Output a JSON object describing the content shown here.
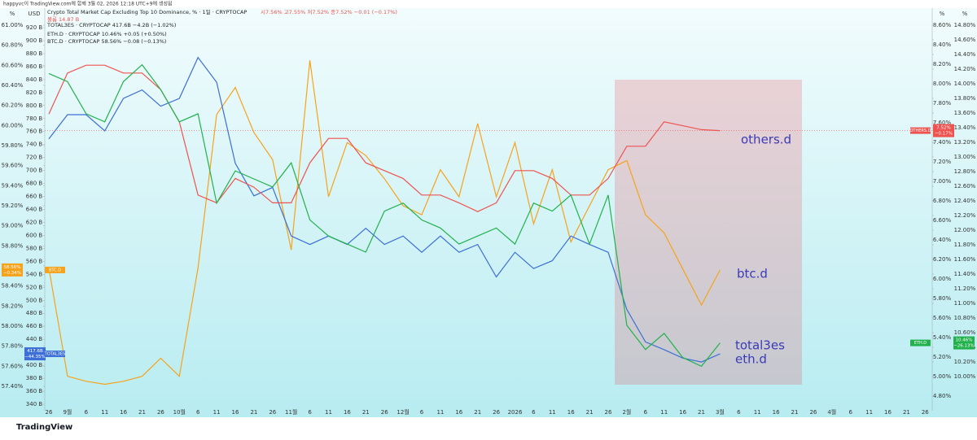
{
  "header": "happyvc이 TradingView.com에 함께 3월 02, 2026 12:18 UTC+9에 생성됨",
  "footer": "TradingView",
  "chart_data": {
    "type": "line",
    "title": "Crypto Total Market Cap Excluding Top 10 Dominance, % · 1일 · CRYPTOCAP",
    "title_values": "시7.56% 고7.55% 저7.52% 종7.52% −0.01 (−0.17%)",
    "volume_label": "볼륨 14.87 B",
    "annotations": [
      "others.d",
      "btc.d",
      "total3es",
      "eth.d"
    ],
    "categories": [
      "26",
      "9월",
      "6",
      "11",
      "16",
      "21",
      "26",
      "10월",
      "6",
      "11",
      "16",
      "21",
      "26",
      "11월",
      "6",
      "11",
      "16",
      "21",
      "26",
      "12월",
      "6",
      "11",
      "16",
      "21",
      "26",
      "2026",
      "6",
      "11",
      "16",
      "21",
      "26",
      "2월",
      "6",
      "11",
      "16",
      "21",
      "3월",
      "6",
      "11",
      "16",
      "21",
      "26",
      "4월",
      "6",
      "11",
      "16",
      "21",
      "26"
    ],
    "axes": [
      {
        "unit": "%",
        "lim": [
          57.4,
          61
        ],
        "ticks": [
          {
            "value": 57.4,
            "label": "57.40%"
          },
          {
            "value": 57.6,
            "label": "57.60%"
          },
          {
            "value": 57.8,
            "label": "57.80%"
          },
          {
            "value": 58,
            "label": "58.00%"
          },
          {
            "value": 58.2,
            "label": "58.20%"
          },
          {
            "value": 58.4,
            "label": "58.40%"
          },
          {
            "value": 58.6,
            "label": "58.60%"
          },
          {
            "value": 58.8,
            "label": "58.80%"
          },
          {
            "value": 59,
            "label": "59.00%"
          },
          {
            "value": 59.2,
            "label": "59.20%"
          },
          {
            "value": 59.4,
            "label": "59.40%"
          },
          {
            "value": 59.6,
            "label": "59.60%"
          },
          {
            "value": 59.8,
            "label": "59.80%"
          },
          {
            "value": 60,
            "label": "60.00%"
          },
          {
            "value": 60.2,
            "label": "60.20%"
          },
          {
            "value": 60.4,
            "label": "60.40%"
          },
          {
            "value": 60.6,
            "label": "60.60%"
          },
          {
            "value": 60.8,
            "label": "60.80%"
          },
          {
            "value": 61,
            "label": "61.00%"
          }
        ]
      },
      {
        "unit": "USD",
        "lim": [
          340,
          920
        ],
        "ticks": [
          {
            "value": 340,
            "label": "340 B"
          },
          {
            "value": 360,
            "label": "360 B"
          },
          {
            "value": 380,
            "label": "380 B"
          },
          {
            "value": 400,
            "label": "400 B"
          },
          {
            "value": 420,
            "label": "420 B"
          },
          {
            "value": 440,
            "label": "440 B"
          },
          {
            "value": 460,
            "label": "460 B"
          },
          {
            "value": 480,
            "label": "480 B"
          },
          {
            "value": 500,
            "label": "500 B"
          },
          {
            "value": 520,
            "label": "520 B"
          },
          {
            "value": 540,
            "label": "540 B"
          },
          {
            "value": 560,
            "label": "560 B"
          },
          {
            "value": 580,
            "label": "580 B"
          },
          {
            "value": 600,
            "label": "600 B"
          },
          {
            "value": 620,
            "label": "620 B"
          },
          {
            "value": 640,
            "label": "640 B"
          },
          {
            "value": 660,
            "label": "660 B"
          },
          {
            "value": 680,
            "label": "680 B"
          },
          {
            "value": 700,
            "label": "700 B"
          },
          {
            "value": 720,
            "label": "720 B"
          },
          {
            "value": 740,
            "label": "740 B"
          },
          {
            "value": 760,
            "label": "760 B"
          },
          {
            "value": 780,
            "label": "780 B"
          },
          {
            "value": 800,
            "label": "800 B"
          },
          {
            "value": 820,
            "label": "820 B"
          },
          {
            "value": 840,
            "label": "840 B"
          },
          {
            "value": 860,
            "label": "860 B"
          },
          {
            "value": 880,
            "label": "880 B"
          },
          {
            "value": 900,
            "label": "900 B"
          },
          {
            "value": 920,
            "label": "920 B"
          }
        ]
      },
      {
        "unit": "%",
        "lim": [
          4.8,
          8.6
        ],
        "ticks": [
          {
            "value": 4.8,
            "label": "4.80%"
          },
          {
            "value": 5,
            "label": "5.00%"
          },
          {
            "value": 5.2,
            "label": "5.20%"
          },
          {
            "value": 5.4,
            "label": "5.40%"
          },
          {
            "value": 5.6,
            "label": "5.60%"
          },
          {
            "value": 5.8,
            "label": "5.80%"
          },
          {
            "value": 6,
            "label": "6.00%"
          },
          {
            "value": 6.2,
            "label": "6.20%"
          },
          {
            "value": 6.4,
            "label": "6.40%"
          },
          {
            "value": 6.6,
            "label": "6.60%"
          },
          {
            "value": 6.8,
            "label": "6.80%"
          },
          {
            "value": 7,
            "label": "7.00%"
          },
          {
            "value": 7.2,
            "label": "7.20%"
          },
          {
            "value": 7.4,
            "label": "7.40%"
          },
          {
            "value": 7.6,
            "label": "7.60%"
          },
          {
            "value": 7.8,
            "label": "7.80%"
          },
          {
            "value": 8,
            "label": "8.00%"
          },
          {
            "value": 8.2,
            "label": "8.20%"
          },
          {
            "value": 8.4,
            "label": "8.40%"
          },
          {
            "value": 8.6,
            "label": "8.60%"
          }
        ]
      },
      {
        "unit": "%",
        "lim": [
          10,
          14.8
        ],
        "ticks": [
          {
            "value": 10,
            "label": "10.00%"
          },
          {
            "value": 10.2,
            "label": "10.20%"
          },
          {
            "value": 10.4,
            "label": "10.40%"
          },
          {
            "value": 10.6,
            "label": "10.60%"
          },
          {
            "value": 10.8,
            "label": "10.80%"
          },
          {
            "value": 11,
            "label": "11.00%"
          },
          {
            "value": 11.2,
            "label": "11.20%"
          },
          {
            "value": 11.4,
            "label": "11.40%"
          },
          {
            "value": 11.6,
            "label": "11.60%"
          },
          {
            "value": 11.8,
            "label": "11.80%"
          },
          {
            "value": 12,
            "label": "12.00%"
          },
          {
            "value": 12.2,
            "label": "12.20%"
          },
          {
            "value": 12.4,
            "label": "12.40%"
          },
          {
            "value": 12.6,
            "label": "12.60%"
          },
          {
            "value": 12.8,
            "label": "12.80%"
          },
          {
            "value": 13,
            "label": "13.00%"
          },
          {
            "value": 13.2,
            "label": "13.20%"
          },
          {
            "value": 13.4,
            "label": "13.40%"
          },
          {
            "value": 13.6,
            "label": "13.60%"
          },
          {
            "value": 13.8,
            "label": "13.80%"
          },
          {
            "value": 14,
            "label": "14.00%"
          },
          {
            "value": 14.2,
            "label": "14.20%"
          },
          {
            "value": 14.4,
            "label": "14.40%"
          },
          {
            "value": 14.6,
            "label": "14.60%"
          },
          {
            "value": 14.8,
            "label": "14.80%"
          }
        ]
      }
    ],
    "series": [
      {
        "name": "BTC.D",
        "legend": "BTC.D · CRYPTOCAP 58.56% −0.08 (−0.13%)",
        "badge": "58.56%",
        "badge_change": "−0.34%",
        "color": "#f7a21b",
        "axis": 0,
        "values": [
          58.58,
          57.5,
          57.45,
          57.42,
          57.45,
          57.5,
          57.68,
          57.5,
          58.58,
          60.11,
          60.38,
          59.93,
          59.66,
          58.76,
          60.65,
          59.29,
          59.83,
          59.7,
          59.47,
          59.2,
          59.11,
          59.56,
          59.29,
          60.02,
          59.29,
          59.83,
          59.02,
          59.56,
          58.84,
          59.2,
          59.56,
          59.65,
          59.11,
          58.93,
          58.57,
          58.21,
          58.56,
          null,
          null,
          null,
          null,
          null,
          null,
          null,
          null,
          null,
          null,
          null
        ]
      },
      {
        "name": "TOTAL3ES",
        "legend": "TOTAL3ES · CRYPTOCAP 417.6B −4.2B (−1.02%)",
        "badge": "417.6B",
        "badge_change": "−44.35%",
        "color": "#3d6fd6",
        "axis": 1,
        "values": [
          748.8,
          786,
          786,
          761,
          811,
          824,
          799,
          811,
          874,
          836,
          711,
          661,
          674,
          599,
          586,
          599,
          586,
          611,
          586,
          599,
          574,
          599,
          574,
          586,
          536,
          574,
          549,
          561,
          599,
          586,
          574,
          486,
          436,
          424,
          411,
          405,
          417.6,
          null,
          null,
          null,
          null,
          null,
          null,
          null,
          null,
          null,
          null,
          null
        ]
      },
      {
        "name": "OTHERS.D",
        "legend": "OTHERS.D · CRYPTOCAP 7.52%",
        "badge": "7.52%",
        "badge_change": "−0.17%",
        "color": "#ef5350",
        "axis": 2,
        "values": [
          7.69,
          8.11,
          8.19,
          8.19,
          8.11,
          8.11,
          7.94,
          7.61,
          6.86,
          6.78,
          7.03,
          6.94,
          6.78,
          6.78,
          7.19,
          7.44,
          7.44,
          7.19,
          7.11,
          7.03,
          6.86,
          6.86,
          6.78,
          6.69,
          6.78,
          7.11,
          7.11,
          7.03,
          6.86,
          6.86,
          7.03,
          7.36,
          7.36,
          7.61,
          7.57,
          7.53,
          7.52,
          null,
          null,
          null,
          null,
          null,
          null,
          null,
          null,
          null,
          null,
          null
        ]
      },
      {
        "name": "ETH.D",
        "legend": "ETH.D · CRYPTOCAP 10.46% +0.05 (+0.50%)",
        "badge": "10.46%",
        "badge_change": "−26.13%",
        "color": "#22b14c",
        "axis": 3,
        "values": [
          14.14,
          14.03,
          13.59,
          13.48,
          14.03,
          14.26,
          13.92,
          13.48,
          13.59,
          12.37,
          12.81,
          12.7,
          12.59,
          12.92,
          12.14,
          11.92,
          11.81,
          11.7,
          12.26,
          12.37,
          12.14,
          12.03,
          11.81,
          11.92,
          12.03,
          11.81,
          12.37,
          12.26,
          12.48,
          11.81,
          12.48,
          10.7,
          10.37,
          10.59,
          10.26,
          10.14,
          10.46,
          null,
          null,
          null,
          null,
          null,
          null,
          null,
          null,
          null,
          null,
          null
        ]
      }
    ]
  }
}
